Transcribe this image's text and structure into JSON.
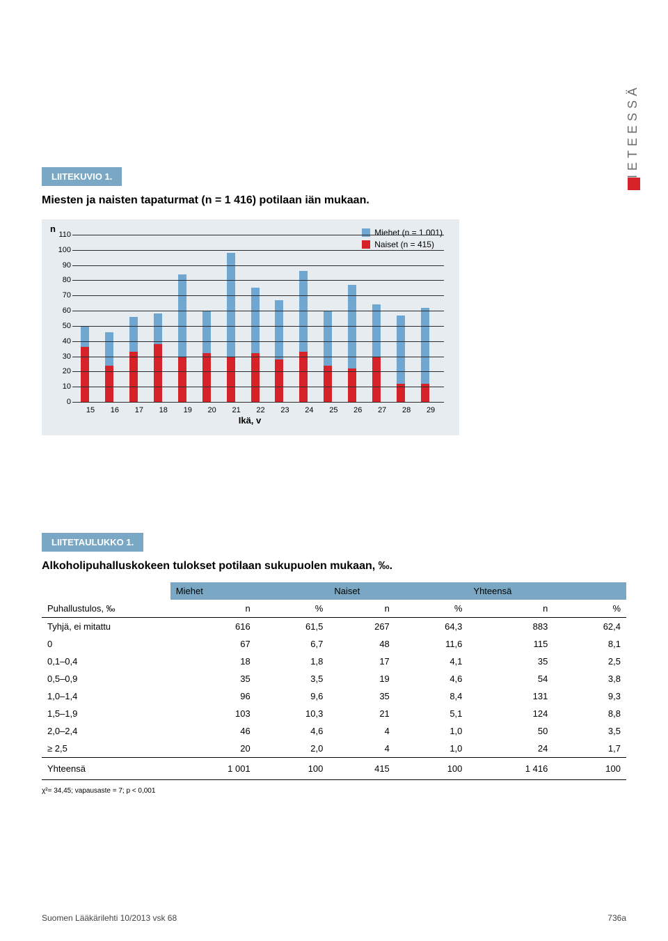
{
  "side_tab": "TIETEESSÄ",
  "figure": {
    "tab_label": "LIITEKUVIO 1.",
    "title": "Miesten ja naisten tapaturmat (n = 1 416) potilaan iän mukaan.",
    "y_axis_label": "n",
    "x_axis_label": "Ikä, v",
    "y_ticks": [
      0,
      10,
      20,
      30,
      40,
      50,
      60,
      70,
      80,
      90,
      100,
      110
    ],
    "y_max": 110,
    "categories": [
      "15",
      "16",
      "17",
      "18",
      "19",
      "20",
      "21",
      "22",
      "23",
      "24",
      "25",
      "26",
      "27",
      "28",
      "29"
    ],
    "series": {
      "miehet": {
        "label": "Miehet (n = 1 001)",
        "color": "#6fa7d0",
        "values": [
          50,
          46,
          56,
          58,
          84,
          60,
          98,
          75,
          67,
          86,
          60,
          77,
          64,
          57,
          62
        ]
      },
      "naiset": {
        "label": "Naiset (n = 415)",
        "color": "#d6232a",
        "values": [
          36,
          24,
          33,
          38,
          30,
          32,
          30,
          32,
          28,
          33,
          24,
          22,
          30,
          12,
          12
        ]
      }
    },
    "grid_color": "#2b2b2b",
    "chart_bg": "#e6ecef"
  },
  "table": {
    "tab_label": "LIITETAULUKKO 1.",
    "title": "Alkoholipuhalluskokeen tulokset potilaan sukupuolen mukaan, ‰.",
    "group_headers": [
      "",
      "Miehet",
      "Naiset",
      "Yhteensä"
    ],
    "sub_headers": [
      "Puhallustulos, ‰",
      "n",
      "%",
      "n",
      "%",
      "n",
      "%"
    ],
    "rows": [
      [
        "Tyhjä, ei mitattu",
        "616",
        "61,5",
        "267",
        "64,3",
        "883",
        "62,4"
      ],
      [
        "0",
        "67",
        "6,7",
        "48",
        "11,6",
        "115",
        "8,1"
      ],
      [
        "0,1–0,4",
        "18",
        "1,8",
        "17",
        "4,1",
        "35",
        "2,5"
      ],
      [
        "0,5–0,9",
        "35",
        "3,5",
        "19",
        "4,6",
        "54",
        "3,8"
      ],
      [
        "1,0–1,4",
        "96",
        "9,6",
        "35",
        "8,4",
        "131",
        "9,3"
      ],
      [
        "1,5–1,9",
        "103",
        "10,3",
        "21",
        "5,1",
        "124",
        "8,8"
      ],
      [
        "2,0–2,4",
        "46",
        "4,6",
        "4",
        "1,0",
        "50",
        "3,5"
      ],
      [
        "≥ 2,5",
        "20",
        "2,0",
        "4",
        "1,0",
        "24",
        "1,7"
      ]
    ],
    "total_row": [
      "Yhteensä",
      "1 001",
      "100",
      "415",
      "100",
      "1 416",
      "100"
    ],
    "footnote": "χ²= 34,45; vapausaste = 7; p < 0,001"
  },
  "footer": {
    "left": "Suomen Lääkärilehti 10/2013 vsk 68",
    "right": "736a"
  }
}
